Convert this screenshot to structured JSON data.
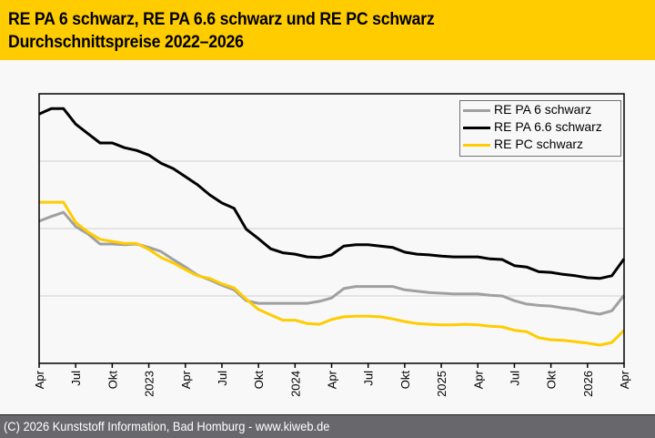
{
  "header": {
    "title_line1": "RE PA 6 schwarz, RE PA 6.6 schwarz und RE PC schwarz",
    "title_line2": "Durchschnittspreise 2022–2026"
  },
  "footer": {
    "copyright": "(C) 2026 Kunststoff Information, Bad Homburg - www.kiweb.de"
  },
  "colors": {
    "header_bg": "#ffcc00",
    "footer_bg": "#68686c",
    "pa6": "#a0a0a0",
    "pa66": "#000000",
    "pc": "#ffcc00",
    "grid": "#d0d0d0"
  },
  "chart_data": {
    "type": "line",
    "title": "RE PA 6 schwarz, RE PA 6.6 schwarz und RE PC schwarz — Durchschnittspreise 2022–2026",
    "xlabel": "",
    "ylabel": "",
    "y_note": "Y axis unlabeled; values are relative units where each horizontal gridline = 1 unit (axis bottom = 0)",
    "ylim": [
      0,
      4
    ],
    "grid": true,
    "legend_position": "top-right",
    "x_start": "2022-04",
    "x_end": "2026-04",
    "x_tick_labels": [
      "Apr",
      "Jul",
      "Okt",
      "2023",
      "Apr",
      "Jul",
      "Okt",
      "2024",
      "Apr",
      "Jul",
      "Okt",
      "2025",
      "Apr",
      "Jul",
      "Okt",
      "2026",
      "Apr"
    ],
    "x_tick_month_index": [
      0,
      3,
      6,
      9,
      12,
      15,
      18,
      21,
      24,
      27,
      30,
      33,
      36,
      39,
      42,
      45,
      48
    ],
    "series": [
      {
        "name": "RE PA 6 schwarz",
        "color": "#a0a0a0",
        "values": [
          2.11,
          2.18,
          2.24,
          2.03,
          1.92,
          1.77,
          1.77,
          1.76,
          1.77,
          1.72,
          1.66,
          1.54,
          1.43,
          1.31,
          1.24,
          1.16,
          1.09,
          0.93,
          0.89,
          0.89,
          0.89,
          0.89,
          0.89,
          0.92,
          0.97,
          1.11,
          1.14,
          1.14,
          1.14,
          1.14,
          1.09,
          1.07,
          1.05,
          1.04,
          1.03,
          1.03,
          1.03,
          1.01,
          1.0,
          0.93,
          0.88,
          0.86,
          0.85,
          0.82,
          0.8,
          0.76,
          0.73,
          0.78,
          1.01
        ]
      },
      {
        "name": "RE PA 6.6 schwarz",
        "color": "#000000",
        "values": [
          3.7,
          3.78,
          3.78,
          3.55,
          3.41,
          3.27,
          3.27,
          3.2,
          3.16,
          3.09,
          2.97,
          2.89,
          2.77,
          2.65,
          2.5,
          2.38,
          2.3,
          1.99,
          1.85,
          1.7,
          1.64,
          1.62,
          1.58,
          1.57,
          1.61,
          1.74,
          1.76,
          1.76,
          1.74,
          1.72,
          1.65,
          1.62,
          1.61,
          1.59,
          1.58,
          1.58,
          1.58,
          1.55,
          1.54,
          1.45,
          1.43,
          1.36,
          1.35,
          1.32,
          1.3,
          1.27,
          1.26,
          1.3,
          1.55
        ]
      },
      {
        "name": "RE PC schwarz",
        "color": "#ffcc00",
        "values": [
          2.39,
          2.39,
          2.39,
          2.09,
          1.95,
          1.84,
          1.81,
          1.78,
          1.78,
          1.69,
          1.57,
          1.49,
          1.39,
          1.3,
          1.26,
          1.18,
          1.12,
          0.95,
          0.8,
          0.72,
          0.64,
          0.64,
          0.59,
          0.58,
          0.65,
          0.69,
          0.7,
          0.7,
          0.69,
          0.66,
          0.62,
          0.59,
          0.58,
          0.57,
          0.57,
          0.58,
          0.57,
          0.55,
          0.54,
          0.49,
          0.47,
          0.38,
          0.35,
          0.34,
          0.32,
          0.3,
          0.27,
          0.31,
          0.49
        ]
      }
    ]
  }
}
